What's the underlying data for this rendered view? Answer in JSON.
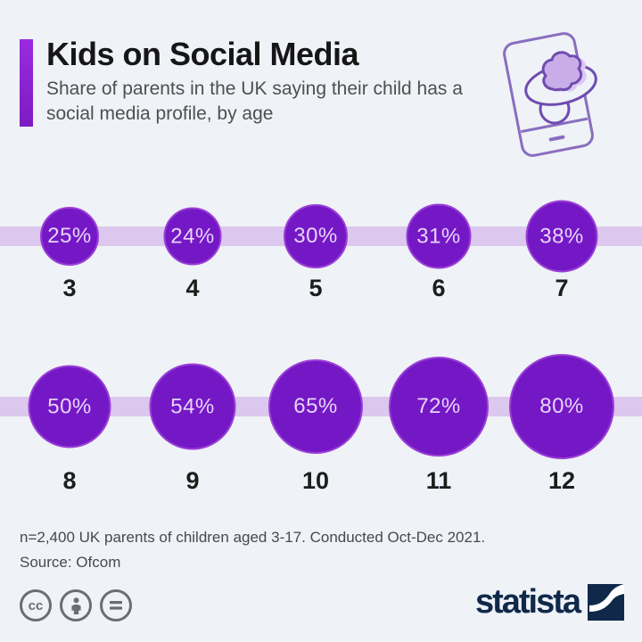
{
  "header": {
    "title": "Kids on Social Media",
    "subtitle": "Share of parents in the UK saying their child has a social media profile, by age"
  },
  "chart_data": {
    "type": "bubble",
    "title": "Kids on Social Media",
    "subtitle": "Share of parents in the UK saying their child has a social media profile, by age",
    "unit": "%",
    "encoding": "circle area proportional to value, circles on horizontal timeline bands, two rows",
    "categories": [
      "3",
      "4",
      "5",
      "6",
      "7",
      "8",
      "9",
      "10",
      "11",
      "12"
    ],
    "values": [
      25,
      24,
      30,
      31,
      38,
      50,
      54,
      65,
      72,
      80
    ],
    "rows": [
      {
        "categories": [
          "3",
          "4",
          "5",
          "6",
          "7"
        ],
        "values": [
          25,
          24,
          30,
          31,
          38
        ],
        "labels": [
          "25%",
          "24%",
          "30%",
          "31%",
          "38%"
        ]
      },
      {
        "categories": [
          "8",
          "9",
          "10",
          "11",
          "12"
        ],
        "values": [
          50,
          54,
          65,
          72,
          80
        ],
        "labels": [
          "50%",
          "54%",
          "65%",
          "72%",
          "80%"
        ]
      }
    ]
  },
  "footer": {
    "note": "n=2,400 UK parents of children aged 3-17. Conducted Oct-Dec 2021.",
    "source": "Source: Ofcom"
  },
  "branding": {
    "logo_text": "statista",
    "license_badges": [
      "cc-icon",
      "attribution-person-icon",
      "no-derivatives-equals-icon"
    ],
    "cc_label": "cc"
  },
  "colors": {
    "background": "#eff2f7",
    "accent": "#8b21d1",
    "band": "#dcc7ee",
    "bubble_fill": "#7418c6",
    "bubble_ring": "#9a3fd6",
    "bubble_text": "#e7d3f8",
    "title_text": "#161616",
    "subtitle_text": "#4f4f4f",
    "age_text": "#1d1d1d",
    "note_text": "#46494d",
    "license_gray": "#6a6e72",
    "statista_navy": "#10294a",
    "illustration_stroke": "#6f4cb0",
    "illustration_fill": "#c8ade9"
  }
}
